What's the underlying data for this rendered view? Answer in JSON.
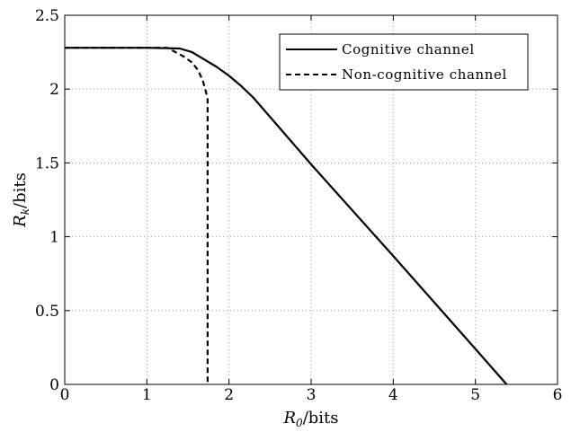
{
  "chart_data": {
    "type": "line",
    "title": "",
    "xlabel": "R_0/bits",
    "ylabel": "R_k/bits",
    "xlim": [
      0,
      6
    ],
    "ylim": [
      0,
      2.5
    ],
    "xticks": [
      0,
      1,
      2,
      3,
      4,
      5,
      6
    ],
    "yticks": [
      0,
      0.5,
      1,
      1.5,
      2,
      2.5
    ],
    "xtick_labels": [
      "0",
      "1",
      "2",
      "3",
      "4",
      "5",
      "6"
    ],
    "ytick_labels": [
      "0",
      "0.5",
      "1",
      "1.5",
      "2",
      "2.5"
    ],
    "grid": true,
    "legend_position": "top-right",
    "series": [
      {
        "name": "Cognitive channel",
        "style": "solid",
        "color": "#000000",
        "x": [
          0,
          1.0,
          1.4,
          1.55,
          1.7,
          1.85,
          2.0,
          2.15,
          2.3,
          3.0,
          4.0,
          5.0,
          5.38
        ],
        "y": [
          2.28,
          2.28,
          2.275,
          2.25,
          2.2,
          2.15,
          2.09,
          2.02,
          1.94,
          1.49,
          0.87,
          0.24,
          0
        ]
      },
      {
        "name": "Non-cognitive channel",
        "style": "dashed",
        "color": "#000000",
        "x": [
          0,
          1.25,
          1.35,
          1.45,
          1.55,
          1.62,
          1.68,
          1.72,
          1.74,
          1.74
        ],
        "y": [
          2.28,
          2.28,
          2.25,
          2.22,
          2.18,
          2.13,
          2.06,
          1.98,
          1.93,
          0
        ]
      }
    ]
  }
}
